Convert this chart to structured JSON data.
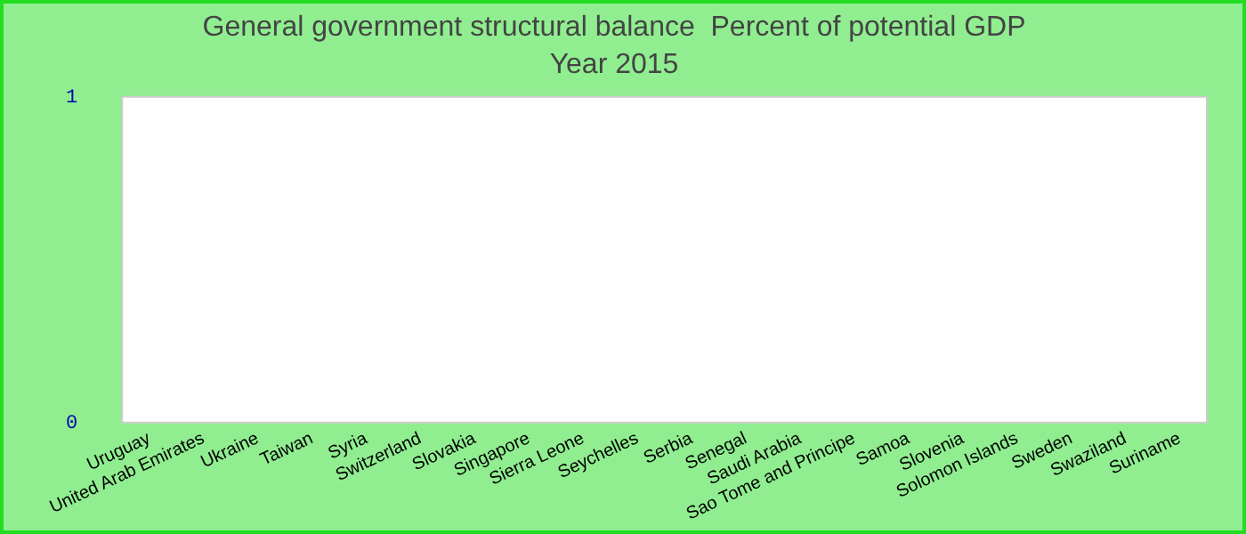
{
  "chart_data": {
    "type": "bar",
    "title": "General government structural balance  Percent of potential GDP",
    "subtitle": "Year 2015",
    "categories": [
      "Uruguay",
      "United Arab Emirates",
      "Ukraine",
      "Taiwan",
      "Syria",
      "Switzerland",
      "Slovakia",
      "Singapore",
      "Sierra Leone",
      "Seychelles",
      "Serbia",
      "Senegal",
      "Saudi Arabia",
      "Sao Tome and Principe",
      "Samoa",
      "Slovenia",
      "Solomon Islands",
      "Sweden",
      "Swaziland",
      "Suriname"
    ],
    "values": [
      null,
      null,
      null,
      null,
      null,
      null,
      null,
      null,
      null,
      null,
      null,
      null,
      null,
      null,
      null,
      null,
      null,
      null,
      null,
      null
    ],
    "ylim": [
      0,
      1
    ],
    "yticks": [
      0,
      1
    ],
    "grid": false,
    "legend": false
  }
}
